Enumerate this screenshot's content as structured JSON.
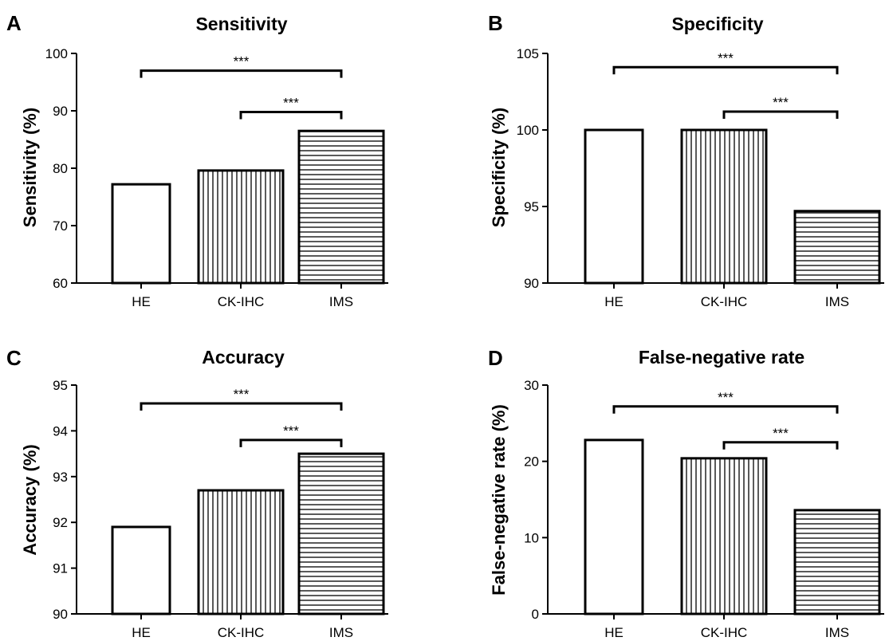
{
  "chart_data": [
    {
      "panel": "A",
      "type": "bar",
      "title": "Sensitivity",
      "xlabel": "",
      "ylabel": "Sensitivity (%)",
      "categories": [
        "HE",
        "CK-IHC",
        "IMS"
      ],
      "values": [
        77.2,
        79.6,
        86.5
      ],
      "ylim": [
        60,
        100
      ],
      "yticks": [
        60,
        70,
        80,
        90,
        100
      ],
      "ytick_labels": [
        "60",
        "70",
        "80",
        "90",
        "100"
      ],
      "patterns": [
        "none",
        "vertical-lines",
        "horizontal-lines"
      ],
      "significance": [
        {
          "from": "HE",
          "to": "IMS",
          "label": "***",
          "y": 97
        },
        {
          "from": "CK-IHC",
          "to": "IMS",
          "label": "***",
          "y": 89.8
        }
      ]
    },
    {
      "panel": "B",
      "type": "bar",
      "title": "Specificity",
      "xlabel": "",
      "ylabel": "Specificity (%)",
      "categories": [
        "HE",
        "CK-IHC",
        "IMS"
      ],
      "values": [
        100,
        100,
        94.7
      ],
      "ylim": [
        90,
        105
      ],
      "yticks": [
        90,
        95,
        100,
        105
      ],
      "ytick_labels": [
        "90",
        "95",
        "100",
        "105"
      ],
      "patterns": [
        "none",
        "vertical-lines",
        "horizontal-lines"
      ],
      "significance": [
        {
          "from": "HE",
          "to": "IMS",
          "label": "***",
          "y": 104.1
        },
        {
          "from": "CK-IHC",
          "to": "IMS",
          "label": "***",
          "y": 101.2
        }
      ]
    },
    {
      "panel": "C",
      "type": "bar",
      "title": "Accuracy",
      "xlabel": "",
      "ylabel": "Accuracy (%)",
      "categories": [
        "HE",
        "CK-IHC",
        "IMS"
      ],
      "values": [
        91.9,
        92.7,
        93.5
      ],
      "ylim": [
        90,
        95
      ],
      "yticks": [
        90,
        91,
        92,
        93,
        94,
        95
      ],
      "ytick_labels": [
        "90",
        "91",
        "92",
        "93",
        "94",
        "95"
      ],
      "patterns": [
        "none",
        "vertical-lines",
        "horizontal-lines"
      ],
      "significance": [
        {
          "from": "HE",
          "to": "IMS",
          "label": "***",
          "y": 94.6
        },
        {
          "from": "CK-IHC",
          "to": "IMS",
          "label": "***",
          "y": 93.8
        }
      ]
    },
    {
      "panel": "D",
      "type": "bar",
      "title": "False-negative rate",
      "xlabel": "",
      "ylabel": "False-negative rate (%)",
      "categories": [
        "HE",
        "CK-IHC",
        "IMS"
      ],
      "values": [
        22.8,
        20.4,
        13.6
      ],
      "ylim": [
        0,
        30
      ],
      "yticks": [
        0,
        10,
        20,
        30
      ],
      "ytick_labels": [
        "0",
        "10",
        "20",
        "30"
      ],
      "patterns": [
        "none",
        "vertical-lines",
        "horizontal-lines"
      ],
      "significance": [
        {
          "from": "HE",
          "to": "IMS",
          "label": "***",
          "y": 27.2
        },
        {
          "from": "CK-IHC",
          "to": "IMS",
          "label": "***",
          "y": 22.5
        }
      ]
    }
  ]
}
